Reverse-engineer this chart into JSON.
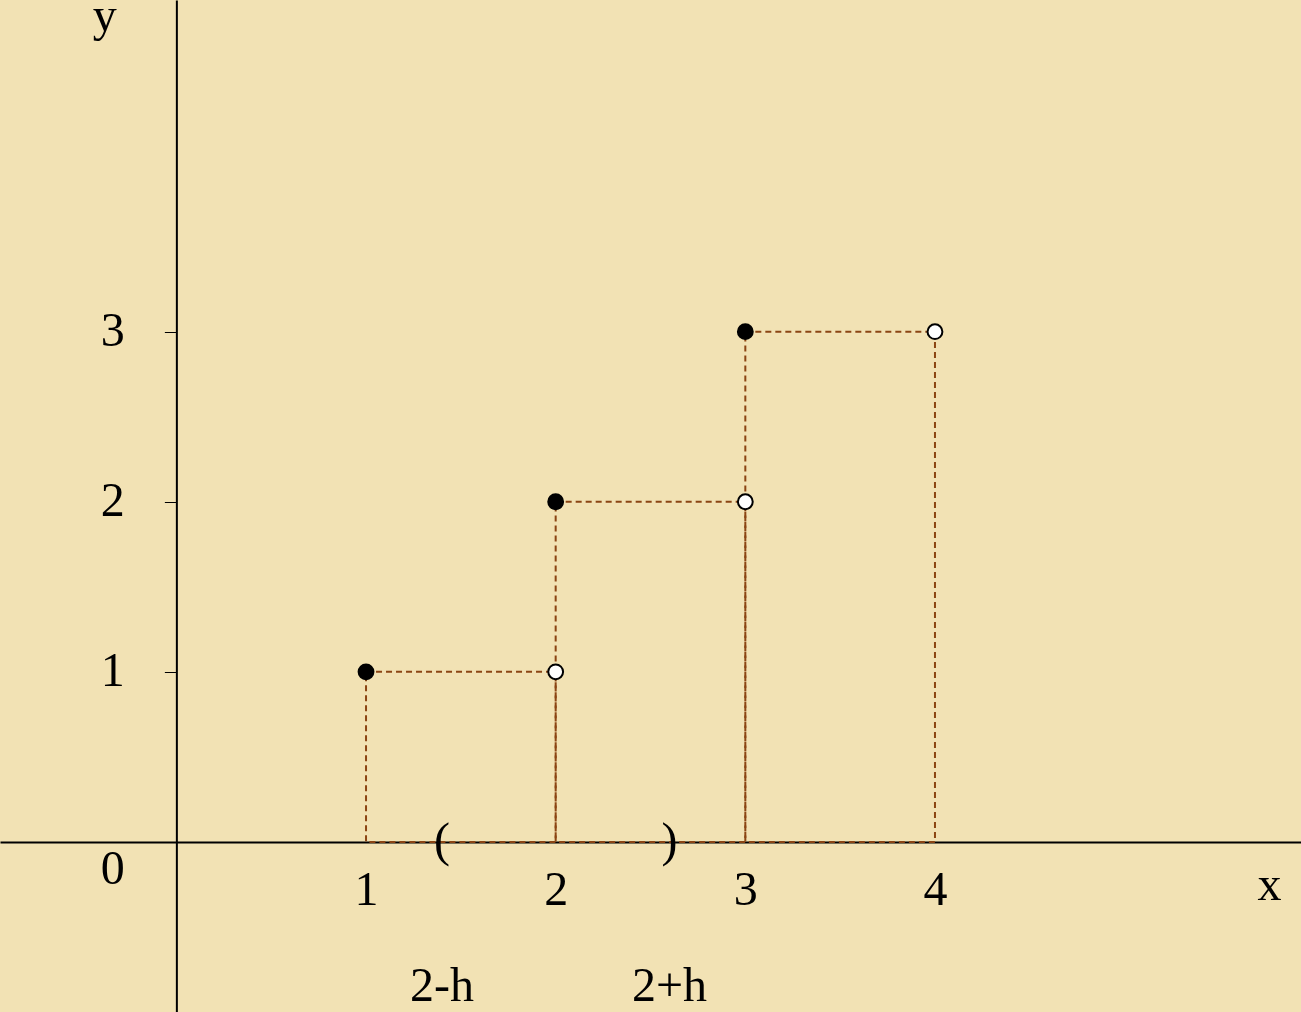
{
  "chart_data": {
    "type": "scatter",
    "xlabel": "x",
    "ylabel": "y",
    "xlim": [
      -0.93,
      5.93
    ],
    "ylim": [
      -1.0,
      4.95
    ],
    "xticks": [
      1,
      2,
      3,
      4
    ],
    "yticks": [
      0,
      1,
      2,
      3
    ],
    "series": [
      {
        "type": "histogram",
        "bins": [
          1,
          2,
          3,
          4
        ],
        "values": [
          1,
          2,
          3
        ],
        "color": "#8b4513",
        "line_style": "dashed"
      },
      {
        "x": [
          1,
          2,
          3
        ],
        "values": [
          1,
          2,
          3
        ],
        "color": "#000000",
        "marker": "circle"
      },
      {
        "x": [
          2,
          3,
          4
        ],
        "values": [
          1,
          2,
          3
        ],
        "color": "#ffffff",
        "marker": "circle"
      }
    ],
    "annotations": [
      {
        "text": "(",
        "x": 1.4,
        "y": 0
      },
      {
        "text": ")",
        "x": 2.6,
        "y": 0
      },
      "2-h",
      "2+h"
    ]
  }
}
